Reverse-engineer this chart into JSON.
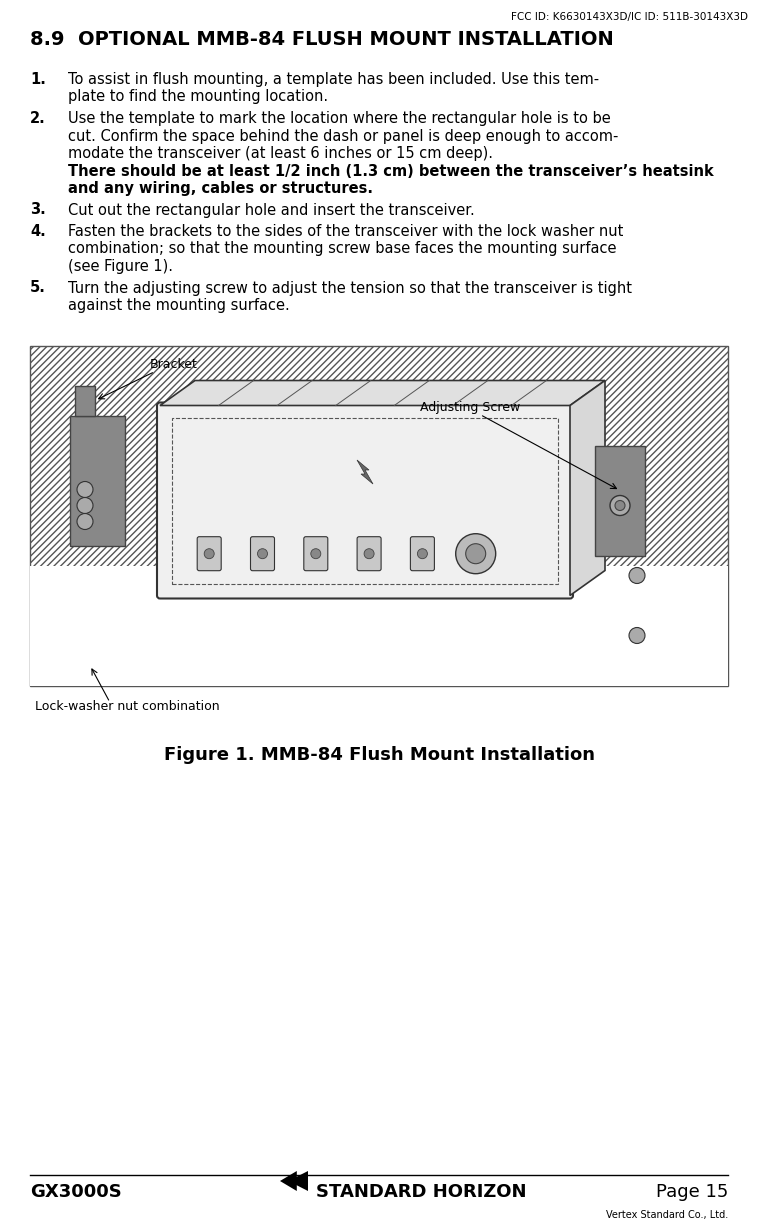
{
  "fcc_id_text": "FCC ID: K6630143X3D/IC ID: 511B-30143X3D",
  "section_title": "8.9  OPTIONAL MMB-84 FLUSH MOUNT INSTALLATION",
  "item1_lines": [
    "To assist in flush mounting, a template has been included. Use this tem-",
    "plate to find the mounting location."
  ],
  "item2_lines_normal": [
    "Use the template to mark the location where the rectangular hole is to be",
    "cut. Confirm the space behind the dash or panel is deep enough to accom-",
    "modate the transceiver (at least 6 inches or 15 cm deep)."
  ],
  "item2_lines_bold": [
    "There should be at least 1/2 inch (1.3 cm) between the transceiver’s heatsink",
    "and any wiring, cables or structures."
  ],
  "item3_lines": [
    "Cut out the rectangular hole and insert the transceiver."
  ],
  "item4_lines": [
    "Fasten the brackets to the sides of the transceiver with the lock washer nut",
    "combination; so that the mounting screw base faces the mounting surface",
    "(see Figure 1)."
  ],
  "item5_lines": [
    "Turn the adjusting screw to adjust the tension so that the transceiver is tight",
    "against the mounting surface."
  ],
  "figure_caption": "Figure 1. MMB-84 Flush Mount Installation",
  "footer_left": "GX3000S",
  "footer_center": "STANDARD HORIZON",
  "footer_right": "Page 15",
  "footer_small": "Vertex Standard Co., Ltd.",
  "label_bracket": "Bracket",
  "label_adjusting": "Adjusting Screw",
  "label_lockwasher": "Lock-washer nut combination",
  "bg_color": "#ffffff",
  "text_color": "#000000"
}
